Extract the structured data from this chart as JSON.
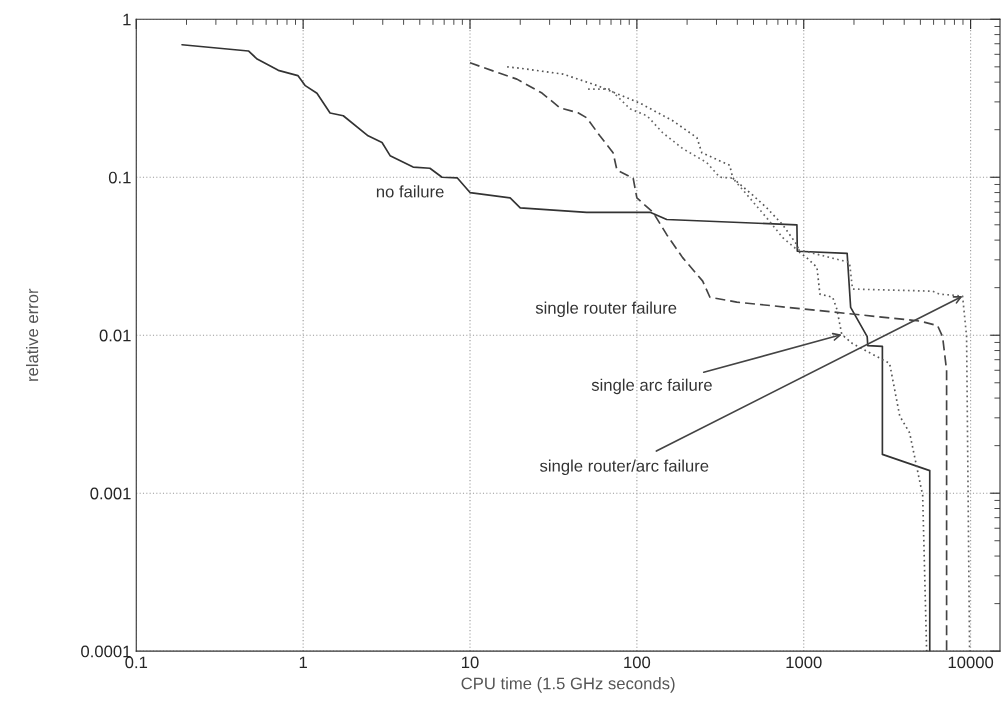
{
  "chart_data": {
    "type": "line",
    "xlabel": "CPU time (1.5 GHz seconds)",
    "ylabel": "relative error",
    "log": "xy",
    "grid": true,
    "legend": false,
    "marker": "none",
    "xlim": [
      0.1,
      15000
    ],
    "ylim": [
      0.0001,
      1
    ],
    "xticks": [
      0.1,
      1,
      10,
      100,
      1000,
      10000
    ],
    "yticks": [
      0.0001,
      0.001,
      0.01,
      0.1,
      1
    ],
    "series": [
      {
        "name": "no failure",
        "color": "#333333",
        "line_style": "solid",
        "x": [
          0.188,
          0.47,
          0.53,
          0.71,
          0.93,
          1.03,
          1.21,
          1.45,
          1.74,
          2.45,
          2.97,
          3.32,
          4.56,
          5.75,
          6.8,
          8.4,
          10,
          17.4,
          20,
          50,
          120,
          151,
          910,
          915,
          1820,
          1910,
          2400,
          2420,
          2960,
          2960,
          5690,
          5690
        ],
        "values": [
          0.69,
          0.63,
          0.56,
          0.475,
          0.44,
          0.38,
          0.34,
          0.255,
          0.245,
          0.183,
          0.166,
          0.137,
          0.116,
          0.114,
          0.1,
          0.099,
          0.08,
          0.074,
          0.064,
          0.06,
          0.06,
          0.054,
          0.05,
          0.034,
          0.033,
          0.015,
          0.0098,
          0.0086,
          0.0085,
          0.00176,
          0.00139,
          0.0001
        ]
      },
      {
        "name": "single router failure",
        "color": "#444444",
        "line_style": "dashed",
        "x": [
          10,
          15.1,
          19.1,
          27,
          34.6,
          44.4,
          50,
          60,
          72,
          76,
          95,
          100,
          125,
          151,
          188,
          248,
          274,
          397,
          1250,
          4950,
          6340,
          6790,
          7180,
          7180
        ],
        "values": [
          0.53,
          0.455,
          0.418,
          0.341,
          0.275,
          0.256,
          0.238,
          0.183,
          0.143,
          0.111,
          0.0986,
          0.074,
          0.06,
          0.0433,
          0.031,
          0.022,
          0.0174,
          0.0162,
          0.0143,
          0.0123,
          0.0115,
          0.0098,
          0.006,
          0.0001
        ]
      },
      {
        "color": "#555555",
        "line_style": "dotted",
        "x": [
          16.7,
          19.9,
          36,
          58,
          104,
          164,
          229,
          245,
          360,
          376,
          495,
          600,
          748,
          908,
          946,
          1040,
          1200,
          1250,
          1490,
          1580,
          1690,
          1960,
          3270,
          3760,
          4310,
          5160,
          5450
        ],
        "values": [
          0.5,
          0.49,
          0.45,
          0.38,
          0.295,
          0.228,
          0.178,
          0.143,
          0.119,
          0.0986,
          0.077,
          0.064,
          0.05,
          0.0375,
          0.0334,
          0.031,
          0.0269,
          0.0182,
          0.0174,
          0.0146,
          0.0101,
          0.00885,
          0.00663,
          0.00308,
          0.00241,
          0.00097,
          0.0001
        ]
      },
      {
        "color": "#666666",
        "line_style": "dotted",
        "x": [
          51,
          69,
          91,
          115,
          143,
          188,
          262,
          314,
          376,
          475,
          600,
          748,
          908,
          1090,
          1880,
          1960,
          5920,
          6520,
          8950,
          9460,
          9860
        ],
        "values": [
          0.361,
          0.361,
          0.271,
          0.245,
          0.191,
          0.152,
          0.124,
          0.1,
          0.0986,
          0.0738,
          0.0553,
          0.0415,
          0.0349,
          0.0334,
          0.0289,
          0.0196,
          0.019,
          0.0182,
          0.0177,
          0.0098,
          0.0001
        ]
      }
    ],
    "annotations": [
      {
        "text": "single arc failure",
        "x": 1690,
        "y": 0.0101
      },
      {
        "text": "single router/arc failure",
        "x": 8950,
        "y": 0.0177
      }
    ]
  }
}
